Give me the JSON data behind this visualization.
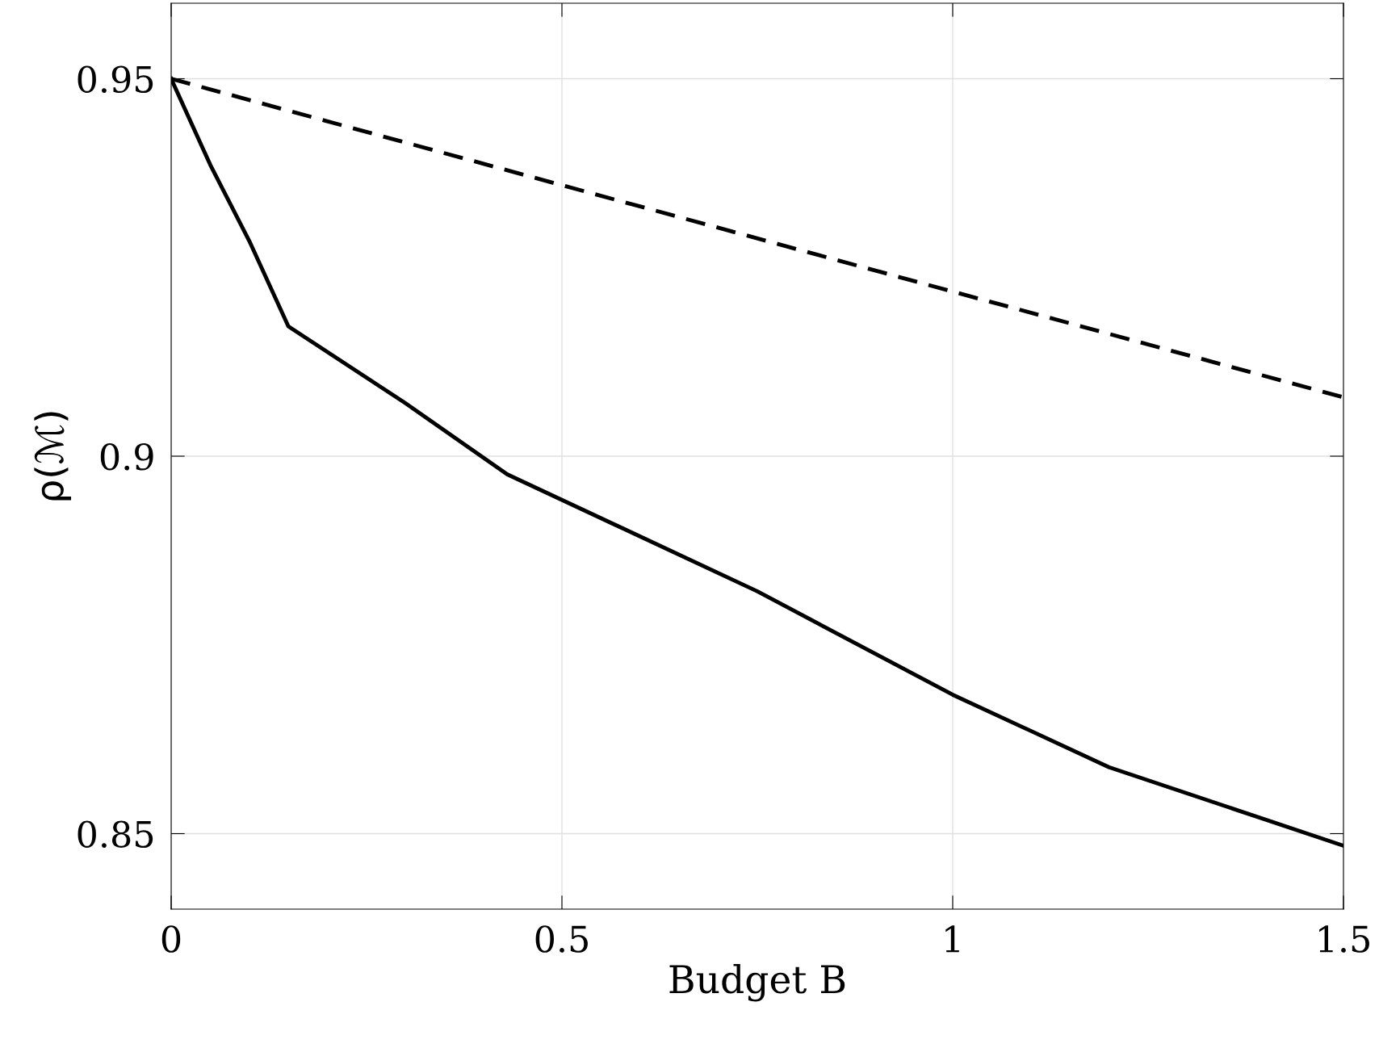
{
  "chart_data": {
    "type": "line",
    "xlabel": "Budget B",
    "ylabel": "ρ(ℳ)",
    "xlim": [
      0,
      1.5
    ],
    "ylim": [
      0.84,
      0.96
    ],
    "xticks": [
      0,
      0.5,
      1,
      1.5
    ],
    "yticks": [
      0.85,
      0.9,
      0.95
    ],
    "grid": true,
    "series": [
      {
        "color": "#000000",
        "line_style": "solid",
        "x": [
          0,
          0.05,
          0.1,
          0.15,
          0.3,
          0.43,
          0.75,
          1,
          1.2,
          1.5
        ],
        "values": [
          0.95,
          0.9386,
          0.9285,
          0.9172,
          0.907,
          0.8976,
          0.8821,
          0.8684,
          0.8588,
          0.8484
        ]
      },
      {
        "color": "#000000",
        "line_style": "dashed",
        "x": [
          0,
          1,
          1.5
        ],
        "values": [
          0.95,
          0.9218,
          0.9078
        ]
      }
    ]
  }
}
